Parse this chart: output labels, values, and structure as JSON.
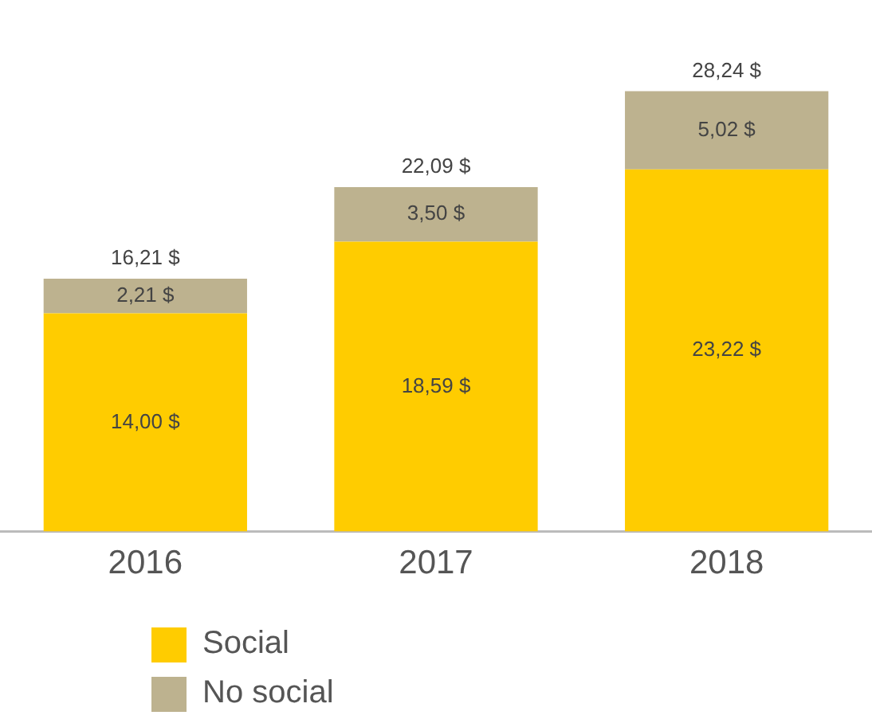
{
  "chart_data": {
    "type": "bar",
    "stacked": true,
    "categories": [
      "2016",
      "2017",
      "2018"
    ],
    "series": [
      {
        "name": "Social",
        "color": "#ffcc00",
        "values": [
          14.0,
          18.59,
          23.22
        ],
        "value_labels": [
          "14,00 $",
          "18,59 $",
          "23,22 $"
        ]
      },
      {
        "name": "No social",
        "color": "#bdb28f",
        "values": [
          2.21,
          3.5,
          5.02
        ],
        "value_labels": [
          "2,21 $",
          "3,50 $",
          "5,02 $"
        ]
      }
    ],
    "totals": [
      "16,21 $",
      "22,09 $",
      "28,24 $"
    ],
    "legend": "bottom left",
    "grid": false
  }
}
